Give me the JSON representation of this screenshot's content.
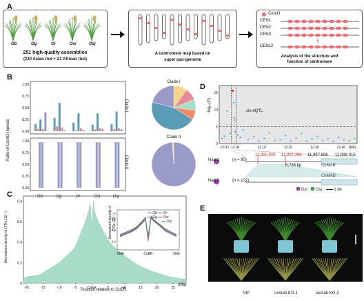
{
  "colors": {
    "teal": "#5a9bb8",
    "lav": "#9a9ac8",
    "orange": "#f08a66",
    "pink": "#e68a96",
    "green": "#a8dcc8",
    "gray": "#d8d8d8",
    "red": "#e04040",
    "darkred": "#c83232",
    "cen_dot": "#e8737a",
    "osi": "#9b3fb0",
    "osj": "#3d9a4a"
  },
  "panelA": {
    "label": "A",
    "species": [
      "Ob",
      "Og",
      "Or",
      "Osi",
      "Osj"
    ],
    "box1_line1": "251 high-quality assemblies",
    "box1_line2": "(230 Asian rice + 21 African rice)",
    "box2_line1": "A centromere map based on",
    "box2_line2": "super pan-genome",
    "legend": "CentO",
    "cen_labels": [
      "CEN1",
      "CEN2",
      "CEN3",
      "CEN12"
    ],
    "box3_line1": "Analysis of the structure and",
    "box3_line2": "function of centromere"
  },
  "panelB": {
    "label": "B",
    "ylabel": "Ratio of CentO repeats",
    "clade1": "Clade I",
    "clade2": "Clade II",
    "yticks_top": [
      "1.00",
      "0.75",
      "0.50",
      "0.25",
      "0.00"
    ],
    "yticks_bot": [
      "1.00",
      "0.75",
      "0.50",
      "0.25",
      "0.00"
    ],
    "xlabels": [
      "Ob",
      "Og",
      "Or",
      "Osi",
      "Osj"
    ]
  },
  "panelC": {
    "label": "C",
    "ylabel": "Normalized density of LTRs (10⁻¹)",
    "xlabel": "Position relative to CoER",
    "xunit": "(Mb)",
    "yticks": [
      "0.8",
      "0.6",
      "0.4",
      "0.2",
      "0"
    ],
    "xticks": [
      "-20",
      "-15",
      "-10",
      "-5",
      "CoER",
      "5",
      "10",
      "15",
      "20",
      "25"
    ],
    "inset_ylabel": "Normalized density of LTRs (10⁻¹)",
    "inset_yticks": [
      "0.6",
      "0.4",
      "0.2"
    ],
    "inset_xticks": [
      "-5Mb",
      "CoER",
      "5Mb"
    ],
    "inset_legend": [
      "Ob",
      "Og",
      "Or",
      "Osi",
      "Osj"
    ]
  },
  "panelD": {
    "label": "D",
    "ylabel": "-log₁₀(P)",
    "yticks": [
      "15",
      "10",
      "5",
      "0"
    ],
    "xticks": [
      "Chr12",
      "12.00",
      "12.10",
      "12.20",
      "12.30",
      "12.40"
    ],
    "xunit": "(Mb)",
    "qtl": "cis-eQTL",
    "hap1": "Hap.1",
    "hap1_n": "(n = 90)",
    "hap2": "Hap.2",
    "hap2_n": "(n = 102)",
    "pos1": "11,990,509",
    "pos2": "11,997,266",
    "pos3": "11,997,906",
    "pos4": "11,998,015",
    "bp": "6,758 bp",
    "gene": "OsMAB",
    "legend_osi": "Osi",
    "legend_osj": "Osj",
    "scale": "1 kb"
  },
  "panelE": {
    "label": "E",
    "captions": [
      "NIP",
      "osmab KO-1",
      "osmab KO-2"
    ]
  },
  "chart_data": [
    {
      "type": "bar",
      "title": "Clade I",
      "categories": [
        "Ob",
        "Og",
        "Or",
        "Osi",
        "Osj"
      ],
      "ylim": [
        0,
        1
      ],
      "series": [
        {
          "values": [
            0.15,
            0.28,
            0.18,
            0.14,
            0.15
          ]
        },
        {
          "values": [
            0.05,
            0.1,
            0.02,
            0.04,
            0.04
          ]
        },
        {
          "values": [
            0.25,
            0.6,
            0.38,
            0.38,
            0.42
          ]
        },
        {
          "values": [
            0.05,
            0.08,
            0.06,
            0.06,
            0.06
          ]
        },
        {
          "values": [
            0.4,
            0.02,
            0.03,
            0.05,
            0.04
          ]
        }
      ]
    },
    {
      "type": "bar",
      "title": "Clade II",
      "categories": [
        "Ob",
        "Og",
        "Or",
        "Osi",
        "Osj"
      ],
      "ylim": [
        0,
        1
      ],
      "series": [
        {
          "values": [
            0.97,
            0.97,
            0.97,
            0.97,
            0.97
          ]
        }
      ]
    },
    {
      "type": "pie",
      "title": "Clade I",
      "values": [
        10,
        9,
        8,
        7,
        45,
        21
      ]
    },
    {
      "type": "pie",
      "title": "Clade II",
      "values": [
        99,
        1
      ]
    },
    {
      "type": "area",
      "title": "",
      "xlabel": "Position relative to CoER",
      "ylabel": "Normalized density of LTRs (10⁻¹)",
      "xlim": [
        -21,
        29
      ],
      "ylim": [
        0,
        0.85
      ],
      "x": [
        -21,
        -20,
        -18,
        -16,
        -14,
        -12,
        -10,
        -8,
        -6,
        -5,
        -4,
        -3,
        -2,
        -1,
        -0.5,
        0,
        0.5,
        1,
        2,
        3,
        4,
        5,
        6,
        8,
        10,
        12,
        14,
        16,
        18,
        20,
        22,
        24,
        26,
        28,
        29
      ],
      "y": [
        0.04,
        0.06,
        0.07,
        0.08,
        0.12,
        0.16,
        0.2,
        0.26,
        0.32,
        0.36,
        0.44,
        0.52,
        0.6,
        0.7,
        0.78,
        0.55,
        0.8,
        0.68,
        0.6,
        0.54,
        0.48,
        0.42,
        0.38,
        0.32,
        0.27,
        0.22,
        0.18,
        0.15,
        0.12,
        0.1,
        0.08,
        0.06,
        0.05,
        0.04,
        0.04
      ]
    },
    {
      "type": "line",
      "title": "",
      "xlim": [
        -5,
        5
      ],
      "ylim": [
        0.1,
        0.7
      ],
      "x": [
        -5,
        -4,
        -3,
        -2,
        -1,
        -0.5,
        0,
        0.5,
        1,
        2,
        3,
        4,
        5
      ],
      "series": [
        {
          "name": "Ob",
          "values": [
            0.3,
            0.34,
            0.38,
            0.44,
            0.54,
            0.6,
            0.25,
            0.62,
            0.56,
            0.48,
            0.4,
            0.35,
            0.3
          ]
        },
        {
          "name": "Og",
          "values": [
            0.28,
            0.32,
            0.36,
            0.42,
            0.52,
            0.58,
            0.2,
            0.6,
            0.55,
            0.47,
            0.38,
            0.33,
            0.28
          ]
        },
        {
          "name": "Or",
          "values": [
            0.32,
            0.36,
            0.4,
            0.46,
            0.56,
            0.62,
            0.3,
            0.64,
            0.58,
            0.5,
            0.42,
            0.37,
            0.32
          ]
        },
        {
          "name": "Osi",
          "values": [
            0.29,
            0.33,
            0.37,
            0.43,
            0.53,
            0.6,
            0.22,
            0.61,
            0.55,
            0.47,
            0.39,
            0.34,
            0.29
          ]
        },
        {
          "name": "Osj",
          "values": [
            0.31,
            0.35,
            0.39,
            0.45,
            0.55,
            0.61,
            0.27,
            0.63,
            0.57,
            0.49,
            0.41,
            0.36,
            0.31
          ]
        }
      ]
    },
    {
      "type": "scatter",
      "title": "",
      "ylabel": "-log₁₀(P)",
      "xlim": [
        11.94,
        12.46
      ],
      "ylim": [
        0,
        17
      ],
      "threshold": 5,
      "x": [
        11.95,
        11.96,
        11.97,
        11.98,
        11.99,
        11.995,
        11.997,
        11.998,
        12.0,
        12.01,
        12.02,
        12.03,
        12.05,
        12.07,
        12.09,
        12.11,
        12.13,
        12.15,
        12.17,
        12.19,
        12.21,
        12.23,
        12.25,
        12.27,
        12.29,
        12.31,
        12.33,
        12.35,
        12.37,
        12.39,
        12.41,
        12.43,
        12.45
      ],
      "y": [
        1.5,
        2.2,
        9.5,
        3.0,
        15.5,
        12.0,
        7.5,
        6.8,
        3.5,
        2.5,
        1.8,
        4.0,
        1.2,
        2.0,
        0.8,
        1.5,
        3.2,
        0.9,
        1.1,
        2.4,
        0.7,
        1.6,
        3.0,
        0.8,
        1.3,
        2.1,
        0.9,
        1.4,
        0.6,
        1.9,
        1.1,
        0.8,
        1.5
      ]
    }
  ]
}
